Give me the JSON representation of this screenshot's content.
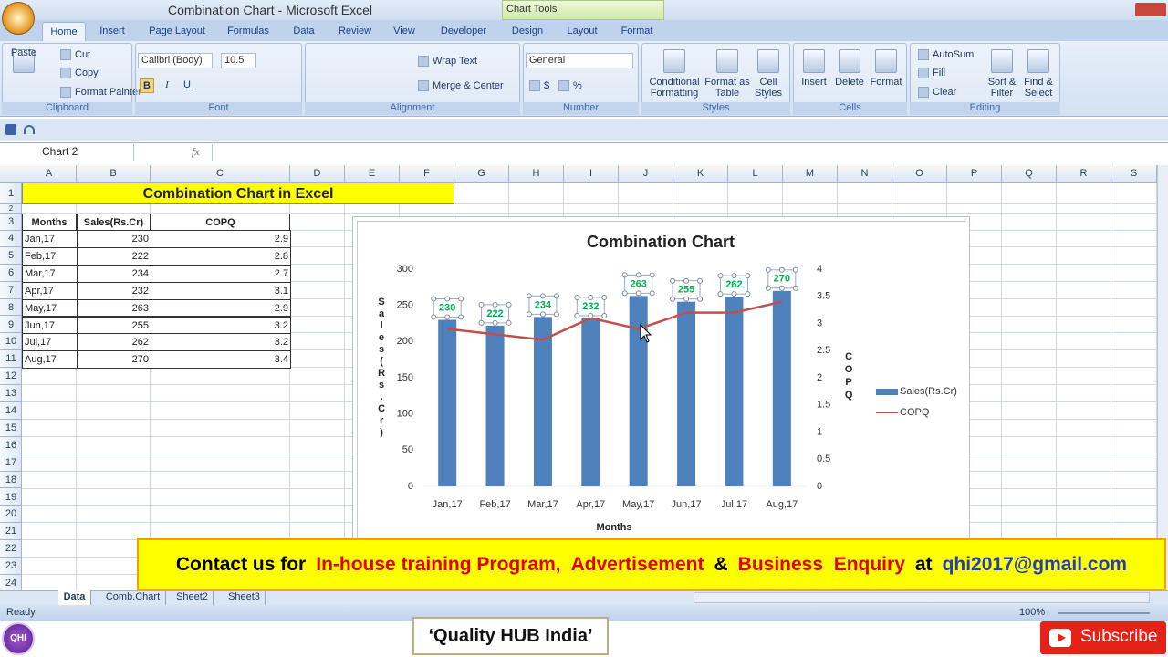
{
  "window": {
    "title": "Combination Chart - Microsoft Excel",
    "context_tab": "Chart Tools"
  },
  "ribbon": {
    "tabs": [
      "Home",
      "Insert",
      "Page Layout",
      "Formulas",
      "Data",
      "Review",
      "View",
      "Developer",
      "Design",
      "Layout",
      "Format"
    ],
    "groups": [
      {
        "label": "Clipboard",
        "buttons": [
          "Paste",
          "Cut",
          "Copy",
          "Format Painter"
        ]
      },
      {
        "label": "Font",
        "buttons": [
          "Calibri (Body)",
          "10.5",
          "B",
          "I",
          "U"
        ]
      },
      {
        "label": "Alignment",
        "buttons": [
          "Wrap Text",
          "Merge & Center"
        ]
      },
      {
        "label": "Number",
        "buttons": [
          "General",
          "$",
          "%"
        ]
      },
      {
        "label": "Styles",
        "buttons": [
          "Conditional Formatting",
          "Format as Table",
          "Cell Styles"
        ]
      },
      {
        "label": "Cells",
        "buttons": [
          "Insert",
          "Delete",
          "Format"
        ]
      },
      {
        "label": "Editing",
        "buttons": [
          "AutoSum",
          "Fill",
          "Clear",
          "Sort & Filter",
          "Find & Select"
        ]
      }
    ]
  },
  "formula_bar": {
    "name_box": "Chart 2",
    "fx": "fx"
  },
  "sheet": {
    "columns": [
      "A",
      "B",
      "C",
      "D",
      "E",
      "F",
      "G",
      "H",
      "I",
      "J",
      "K",
      "L",
      "M",
      "N",
      "O",
      "P",
      "Q",
      "R",
      "S"
    ],
    "row_numbers": [
      1,
      2,
      3,
      4,
      5,
      6,
      7,
      8,
      9,
      10,
      11,
      12,
      13,
      14,
      15,
      16,
      17,
      18,
      19,
      20,
      21,
      22,
      23,
      24
    ],
    "title": "Combination Chart in Excel",
    "headers": [
      "Months",
      "Sales(Rs.Cr)",
      "COPQ"
    ],
    "rows": [
      [
        "Jan,17",
        230,
        2.9
      ],
      [
        "Feb,17",
        222,
        2.8
      ],
      [
        "Mar,17",
        234,
        2.7
      ],
      [
        "Apr,17",
        232,
        3.1
      ],
      [
        "May,17",
        263,
        2.9
      ],
      [
        "Jun,17",
        255,
        3.2
      ],
      [
        "Jul,17",
        262,
        3.2
      ],
      [
        "Aug,17",
        270,
        3.4
      ]
    ]
  },
  "chart_data": {
    "type": "combo",
    "title": "Combination Chart",
    "x_label": "Months",
    "y_label": "Sales(Rs.Cr)",
    "y2_label": "COPQ",
    "categories": [
      "Jan,17",
      "Feb,17",
      "Mar,17",
      "Apr,17",
      "May,17",
      "Jun,17",
      "Jul,17",
      "Aug,17"
    ],
    "series": [
      {
        "name": "Sales(Rs.Cr)",
        "type": "bar",
        "color": "#4f81bd",
        "values": [
          230,
          222,
          234,
          232,
          263,
          255,
          262,
          270
        ]
      },
      {
        "name": "COPQ",
        "type": "line",
        "axis": "y2",
        "color": "#c0504d",
        "values": [
          2.9,
          2.8,
          2.7,
          3.1,
          2.9,
          3.2,
          3.2,
          3.4
        ]
      }
    ],
    "ylim": [
      0,
      300
    ],
    "yticks": [
      0,
      50,
      100,
      150,
      200,
      250,
      300
    ],
    "y2lim": [
      0,
      4
    ],
    "y2ticks": [
      0,
      0.5,
      1,
      1.5,
      2,
      2.5,
      3,
      3.5,
      4
    ],
    "grid": false,
    "legend": "right",
    "data_label_color": "#00b050"
  },
  "sheet_tabs": [
    "Data",
    "Comb.Chart",
    "Sheet2",
    "Sheet3"
  ],
  "status_bar": {
    "mode": "Ready",
    "zoom": "100%"
  },
  "banner": {
    "parts": [
      {
        "text": "Contact us for",
        "color": "#000000"
      },
      {
        "text": "In-house training Program,",
        "color": "#e00000"
      },
      {
        "text": "Advertisement",
        "color": "#e00000"
      },
      {
        "text": "&",
        "color": "#000000"
      },
      {
        "text": "Business  Enquiry",
        "color": "#e00000"
      },
      {
        "text": "at",
        "color": "#000000"
      },
      {
        "text": "qhi2017@gmail.com",
        "color": "#1f3fbf"
      }
    ]
  },
  "footer": {
    "logo": "QHI",
    "brand": "‘Quality HUB India’",
    "subscribe": "Subscribe"
  }
}
